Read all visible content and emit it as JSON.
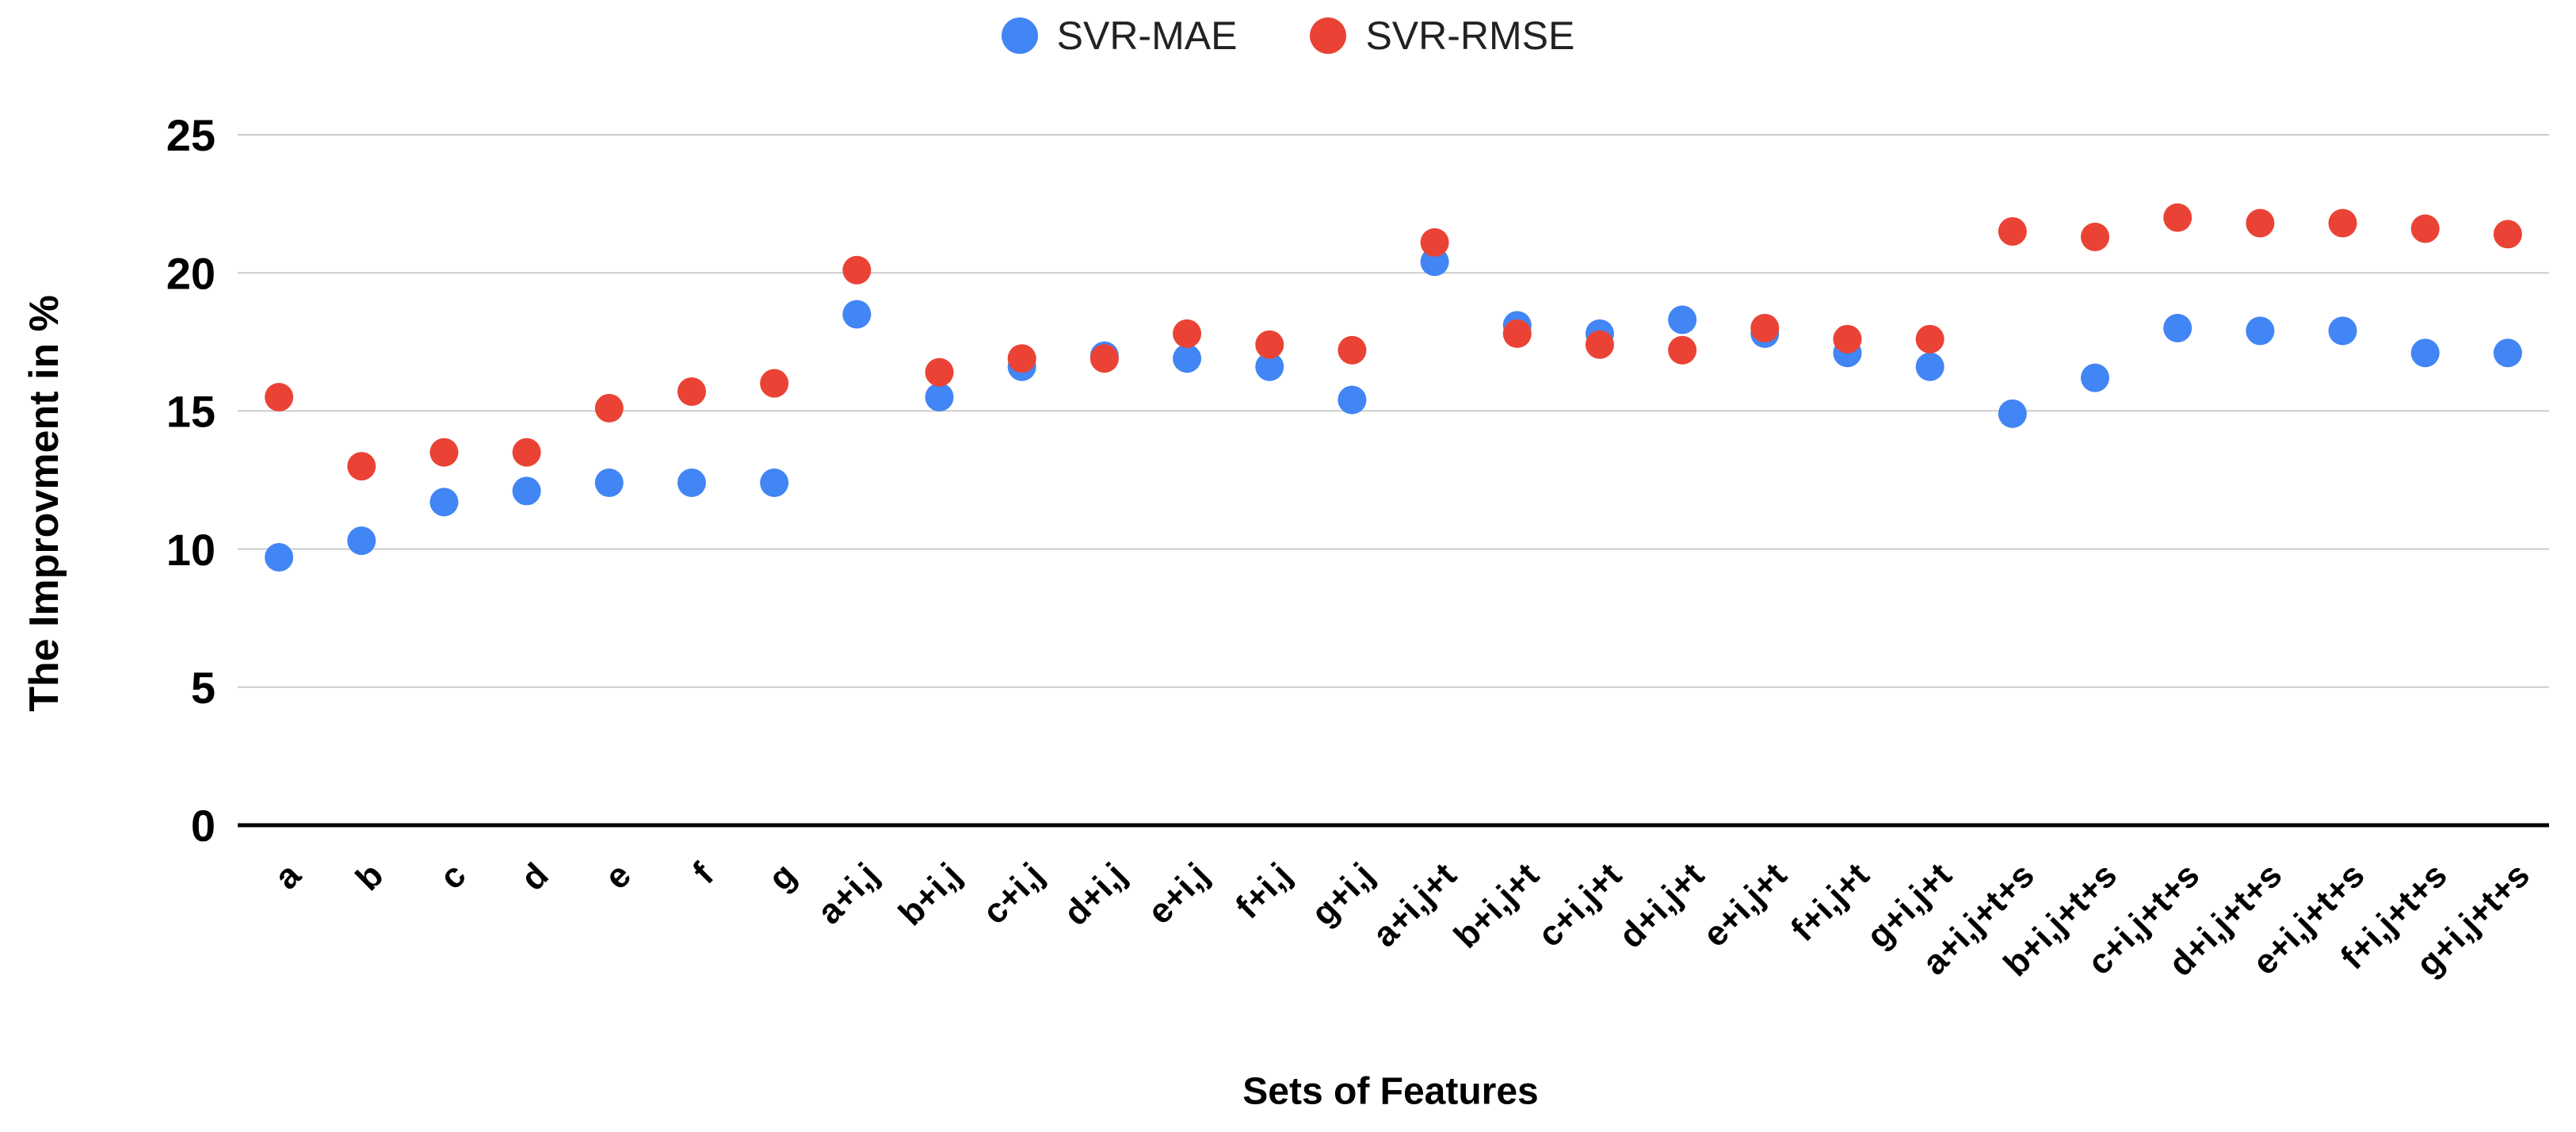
{
  "chart_data": {
    "type": "scatter",
    "xlabel": "Sets of Features",
    "ylabel": "The Improvment in %",
    "ylim": [
      0,
      25
    ],
    "yticks": [
      0,
      5,
      10,
      15,
      20,
      25
    ],
    "grid": true,
    "legend_position": "top-center",
    "categories": [
      "a",
      "b",
      "c",
      "d",
      "e",
      "f",
      "g",
      "a+i,j",
      "b+i,j",
      "c+i,j",
      "d+i,j",
      "e+i,j",
      "f+i,j",
      "g+i,j",
      "a+i,j+t",
      "b+i,j+t",
      "c+i,j+t",
      "d+i,j+t",
      "e+i,j+t",
      "f+i,j+t",
      "g+i,j+t",
      "a+i,j+t+s",
      "b+i,j+t+s",
      "c+i,j+t+s",
      "d+i,j+t+s",
      "e+i,j+t+s",
      "f+i,j+t+s",
      "g+i,j+t+s"
    ],
    "series": [
      {
        "name": "SVR-MAE",
        "color": "#4285F4",
        "values": [
          9.7,
          10.3,
          11.7,
          12.1,
          12.4,
          12.4,
          12.4,
          18.5,
          15.5,
          16.6,
          17.0,
          16.9,
          16.6,
          15.4,
          20.4,
          18.1,
          17.8,
          18.3,
          17.8,
          17.1,
          16.6,
          14.9,
          16.2,
          18.0,
          17.9,
          17.9,
          17.1,
          17.1
        ]
      },
      {
        "name": "SVR-RMSE",
        "color": "#EA4335",
        "values": [
          15.5,
          13.0,
          13.5,
          13.5,
          15.1,
          15.7,
          16.0,
          20.1,
          16.4,
          16.9,
          16.9,
          17.8,
          17.4,
          17.2,
          21.1,
          17.8,
          17.4,
          17.2,
          18.0,
          17.6,
          17.6,
          21.5,
          21.3,
          22.0,
          21.8,
          21.8,
          21.6,
          21.4
        ]
      }
    ]
  },
  "colors": {
    "background": "#ffffff",
    "gridline": "#cccccc",
    "axis_line": "#000000",
    "tick_text": "#000000",
    "legend_text": "#222222"
  }
}
